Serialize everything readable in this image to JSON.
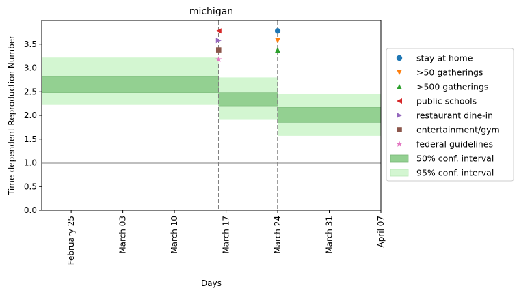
{
  "chart_data": {
    "type": "line",
    "title": "michigan",
    "xlabel": "Days",
    "ylabel": "Time-dependent Reproduction Number",
    "x_range": [
      "2020-02-21",
      "2020-04-07"
    ],
    "ylim": [
      0,
      4.0
    ],
    "y_ticks": [
      0.0,
      0.5,
      1.0,
      1.5,
      2.0,
      2.5,
      3.0,
      3.5
    ],
    "x_ticks": [
      {
        "date": "2020-02-25",
        "label": "February 25"
      },
      {
        "date": "2020-03-03",
        "label": "March 03"
      },
      {
        "date": "2020-03-10",
        "label": "March 10"
      },
      {
        "date": "2020-03-17",
        "label": "March 17"
      },
      {
        "date": "2020-03-24",
        "label": "March 24"
      },
      {
        "date": "2020-03-31",
        "label": "March 31"
      },
      {
        "date": "2020-04-07",
        "label": "April 07"
      }
    ],
    "grid": false,
    "reference_line": {
      "y": 1.0,
      "color": "#000000"
    },
    "intervention_lines": [
      "2020-03-16",
      "2020-03-24"
    ],
    "intervals": [
      {
        "start": "2020-02-21",
        "end": "2020-03-16",
        "ci50": [
          2.48,
          2.82
        ],
        "ci95": [
          2.22,
          3.22
        ]
      },
      {
        "start": "2020-03-16",
        "end": "2020-03-24",
        "ci50": [
          2.2,
          2.48
        ],
        "ci95": [
          1.92,
          2.8
        ]
      },
      {
        "start": "2020-03-24",
        "end": "2020-04-07",
        "ci50": [
          1.85,
          2.17
        ],
        "ci95": [
          1.57,
          2.45
        ]
      }
    ],
    "events": [
      {
        "name": "stay at home",
        "date": "2020-03-24",
        "y": 3.78,
        "marker": "circle",
        "color": "#1f77b4"
      },
      {
        "name": ">50 gatherings",
        "date": "2020-03-24",
        "y": 3.58,
        "marker": "triangle-down",
        "color": "#ff7f0e"
      },
      {
        "name": ">500 gatherings",
        "date": "2020-03-24",
        "y": 3.38,
        "marker": "triangle-up",
        "color": "#2ca02c"
      },
      {
        "name": "public schools",
        "date": "2020-03-16",
        "y": 3.78,
        "marker": "triangle-left",
        "color": "#d62728"
      },
      {
        "name": "restaurant dine-in",
        "date": "2020-03-16",
        "y": 3.58,
        "marker": "triangle-right",
        "color": "#9467bd"
      },
      {
        "name": "entertainment/gym",
        "date": "2020-03-16",
        "y": 3.38,
        "marker": "square",
        "color": "#8c564b"
      },
      {
        "name": "federal guidelines",
        "date": "2020-03-16",
        "y": 3.18,
        "marker": "star",
        "color": "#e377c2"
      }
    ],
    "legend": {
      "placement": "right, outside plot",
      "entries": [
        {
          "label": "stay at home",
          "marker": "circle",
          "color": "#1f77b4"
        },
        {
          "label": ">50 gatherings",
          "marker": "triangle-down",
          "color": "#ff7f0e"
        },
        {
          "label": ">500 gatherings",
          "marker": "triangle-up",
          "color": "#2ca02c"
        },
        {
          "label": "public schools",
          "marker": "triangle-left",
          "color": "#d62728"
        },
        {
          "label": "restaurant dine-in",
          "marker": "triangle-right",
          "color": "#9467bd"
        },
        {
          "label": "entertainment/gym",
          "marker": "square",
          "color": "#8c564b"
        },
        {
          "label": "federal guidelines",
          "marker": "star",
          "color": "#e377c2"
        },
        {
          "label": "50% conf. interval",
          "marker": "patch",
          "color": "#93d091"
        },
        {
          "label": "95% conf. interval",
          "marker": "patch",
          "color": "#d3f6d1"
        }
      ]
    },
    "colors": {
      "ci50": "#93d091",
      "ci95": "#d3f6d1",
      "intervention_line": "#808080"
    }
  }
}
